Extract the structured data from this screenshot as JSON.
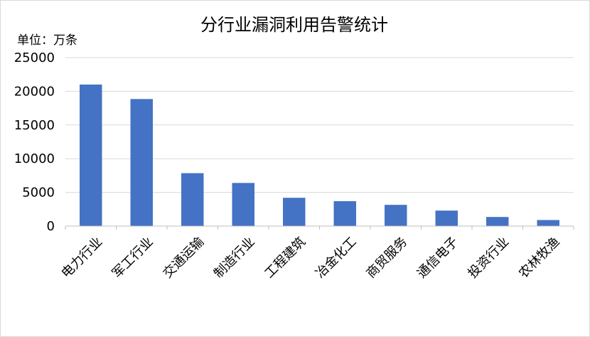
{
  "chart_data": {
    "type": "bar",
    "title": "分行业漏洞利用告警统计",
    "unit_label": "单位：万条",
    "categories": [
      "电力行业",
      "军工行业",
      "交通运输",
      "制造行业",
      "工程建筑",
      "冶金化工",
      "商贸服务",
      "通信电子",
      "投资行业",
      "农林牧渔"
    ],
    "values": [
      21000,
      18850,
      7850,
      6400,
      4200,
      3700,
      3150,
      2300,
      1350,
      900
    ],
    "ylim": [
      0,
      25000
    ],
    "yticks": [
      "0",
      "5000",
      "10000",
      "15000",
      "20000",
      "25000"
    ],
    "grid": true,
    "legend": "none",
    "bar_color": "#4472C4",
    "grid_color": "#d9d9d9",
    "axis_color": "#bfbfbf"
  }
}
